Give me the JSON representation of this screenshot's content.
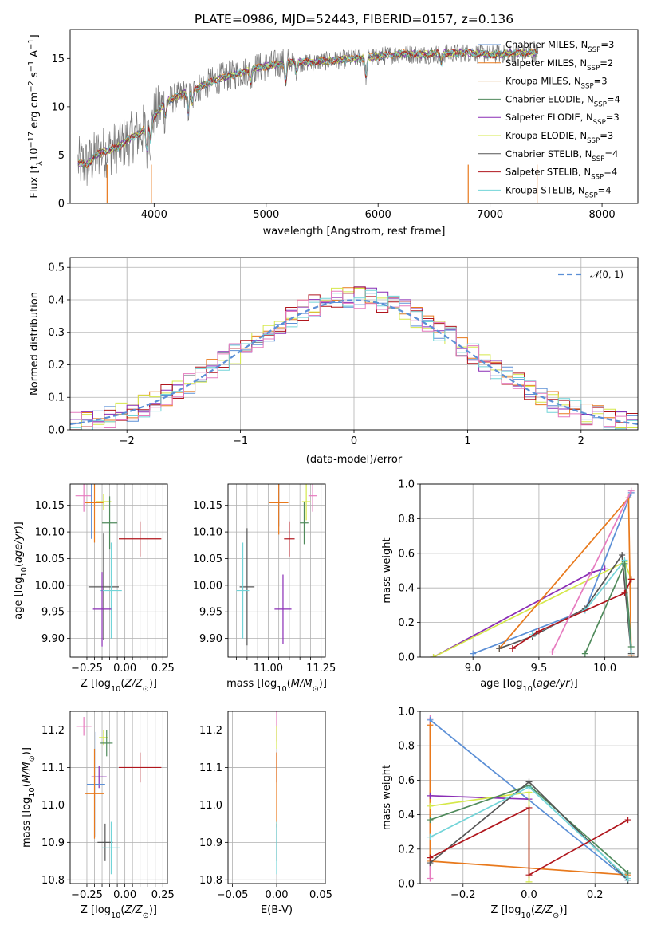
{
  "figure": {
    "title": "PLATE=0986, MJD=52443, FIBERID=0157, z=0.136"
  },
  "models": [
    {
      "name": "Chabrier MILES",
      "nssp": "3",
      "color": "#5b8fd6"
    },
    {
      "name": "Salpeter MILES",
      "nssp": "2",
      "color": "#e8791c"
    },
    {
      "name": "Kroupa MILES",
      "nssp": "3",
      "color": "#c8771a"
    },
    {
      "name": "Chabrier ELODIE",
      "nssp": "4",
      "color": "#4f8a5b"
    },
    {
      "name": "Salpeter ELODIE",
      "nssp": "3",
      "color": "#8a2db5"
    },
    {
      "name": "Kroupa ELODIE",
      "nssp": "3",
      "color": "#d5e84a"
    },
    {
      "name": "Chabrier STELIB",
      "nssp": "4",
      "color": "#555555"
    },
    {
      "name": "Salpeter STELIB",
      "nssp": "4",
      "color": "#b0161d"
    },
    {
      "name": "Kroupa STELIB",
      "nssp": "4",
      "color": "#72d4d8"
    }
  ],
  "chart_data": [
    {
      "id": "spectrum",
      "type": "line",
      "xlabel": "wavelength [Angstrom, rest frame]",
      "ylabel": "Flux [f_λ 10^-17 erg cm^-2 s^-1 A^-1]",
      "xlim": [
        3250,
        8320
      ],
      "ylim": [
        0,
        18
      ],
      "xticks": [
        4000,
        5000,
        6000,
        7000,
        8000
      ],
      "yticks": [
        0,
        5,
        10,
        15
      ],
      "continuum": {
        "x": [
          3320,
          3400,
          3500,
          3600,
          3700,
          3800,
          3900,
          4000,
          4100,
          4200,
          4300,
          4400,
          4500,
          4600,
          4700,
          4800,
          4900,
          5000,
          5200,
          5400,
          5600,
          5800,
          6000,
          6200,
          6400,
          6600,
          6800,
          7000,
          7200,
          7400
        ],
        "y": [
          4.2,
          4.0,
          5.2,
          5.5,
          6.0,
          6.8,
          7.5,
          9.0,
          10.5,
          11.0,
          11.5,
          12.0,
          12.5,
          13.0,
          13.3,
          13.6,
          14.0,
          14.2,
          14.6,
          14.6,
          14.8,
          15.0,
          15.2,
          15.5,
          15.4,
          15.5,
          15.6,
          15.4,
          15.5,
          15.6
        ]
      },
      "legend_position": "top-right",
      "grid": false
    },
    {
      "id": "residuals",
      "type": "step",
      "xlabel": "(data-model)/error",
      "ylabel": "Normed distribution",
      "xlim": [
        -2.5,
        2.5
      ],
      "ylim": [
        0,
        0.53
      ],
      "xticks": [
        -2,
        -1,
        0,
        1,
        2
      ],
      "yticks": [
        0.0,
        0.1,
        0.2,
        0.3,
        0.4,
        0.5
      ],
      "reference_label": "𝒩(0,1)",
      "reference_color": "#5b8fd6",
      "bin_width": 0.1,
      "series_colors": [
        "#5b8fd6",
        "#e8791c",
        "#d5e84a",
        "#8a2db5",
        "#b0161d",
        "#72d4d8",
        "#e67bbf"
      ],
      "grid": true
    },
    {
      "id": "age-vs-Z",
      "type": "errorbar",
      "xlabel": "Z [log10(Z/Z⊙)]",
      "ylabel": "age [log10(age/yr)]",
      "xlim": [
        -0.36,
        0.28
      ],
      "ylim": [
        9.865,
        10.19
      ],
      "xticks": [
        -0.25,
        -0.2,
        -0.15,
        -0.1,
        -0.05,
        0.0,
        0.05,
        0.1,
        0.15,
        0.2,
        0.25
      ],
      "xtick_labels": [
        "−0.25",
        "",
        "",
        "",
        "",
        "0.00",
        "",
        "",
        "",
        "",
        "0.25"
      ],
      "yticks": [
        9.9,
        9.95,
        10.0,
        10.05,
        10.1,
        10.15
      ],
      "points": [
        {
          "x": -0.27,
          "y": 10.168,
          "xerr": 0.055,
          "yerr": 0.03,
          "color": "#e67bbf"
        },
        {
          "x": -0.22,
          "y": 10.155,
          "xerr": 0.04,
          "yerr": 0.068,
          "color": "#5b8fd6"
        },
        {
          "x": -0.2,
          "y": 10.155,
          "xerr": 0.06,
          "yerr": 0.075,
          "color": "#e8791c"
        },
        {
          "x": -0.14,
          "y": 10.157,
          "xerr": 0.05,
          "yerr": 0.015,
          "color": "#d5e84a"
        },
        {
          "x": -0.1,
          "y": 10.117,
          "xerr": 0.05,
          "yerr": 0.05,
          "color": "#4f8a5b"
        },
        {
          "x": 0.1,
          "y": 10.087,
          "xerr": 0.14,
          "yerr": 0.033,
          "color": "#b0161d"
        },
        {
          "x": -0.14,
          "y": 9.997,
          "xerr": 0.1,
          "yerr": 0.1,
          "color": "#555555"
        },
        {
          "x": -0.09,
          "y": 9.99,
          "xerr": 0.07,
          "yerr": 0.09,
          "color": "#72d4d8"
        },
        {
          "x": -0.15,
          "y": 9.955,
          "xerr": 0.06,
          "yerr": 0.07,
          "color": "#8a2db5"
        }
      ],
      "grid": true
    },
    {
      "id": "age-vs-mass",
      "type": "errorbar",
      "xlabel": "mass [log10(M/M⊙)]",
      "ylabel": "",
      "xlim": [
        10.81,
        11.27
      ],
      "ylim": [
        9.865,
        10.19
      ],
      "xticks": [
        10.85,
        10.9,
        10.95,
        11.0,
        11.05,
        11.1,
        11.15,
        11.2,
        11.25
      ],
      "xtick_labels": [
        "",
        "",
        "",
        "11.00",
        "",
        "",
        "",
        "",
        "11.25"
      ],
      "yticks": [
        9.9,
        9.95,
        10.0,
        10.05,
        10.1,
        10.15
      ],
      "points": [
        {
          "x": 11.21,
          "y": 10.168,
          "xerr": 0.02,
          "yerr": 0.03,
          "color": "#e67bbf"
        },
        {
          "x": 11.05,
          "y": 10.155,
          "xerr": 0.04,
          "yerr": 0.045,
          "color": "#5b8fd6"
        },
        {
          "x": 11.05,
          "y": 10.155,
          "xerr": 0.045,
          "yerr": 0.06,
          "color": "#e8791c"
        },
        {
          "x": 11.18,
          "y": 10.157,
          "xerr": 0.02,
          "yerr": 0.035,
          "color": "#d5e84a"
        },
        {
          "x": 11.17,
          "y": 10.117,
          "xerr": 0.02,
          "yerr": 0.04,
          "color": "#4f8a5b"
        },
        {
          "x": 11.1,
          "y": 10.087,
          "xerr": 0.025,
          "yerr": 0.033,
          "color": "#b0161d"
        },
        {
          "x": 10.9,
          "y": 9.997,
          "xerr": 0.035,
          "yerr": 0.11,
          "color": "#555555"
        },
        {
          "x": 10.88,
          "y": 9.99,
          "xerr": 0.03,
          "yerr": 0.09,
          "color": "#72d4d8"
        },
        {
          "x": 11.07,
          "y": 9.955,
          "xerr": 0.04,
          "yerr": 0.065,
          "color": "#8a2db5"
        }
      ],
      "grid": true
    },
    {
      "id": "mass-weight-vs-age",
      "type": "line",
      "xlabel": "age [log10(age/yr)]",
      "ylabel": "mass weight",
      "xlim": [
        8.6,
        10.25
      ],
      "ylim": [
        0,
        1
      ],
      "xticks": [
        9.0,
        9.5,
        10.0
      ],
      "yticks": [
        0.0,
        0.2,
        0.4,
        0.6,
        0.8,
        1.0
      ],
      "series": [
        {
          "color": "#8a2db5",
          "x": [
            8.7,
            9.9,
            10.0
          ],
          "y": [
            0.0,
            0.49,
            0.51
          ]
        },
        {
          "color": "#d5e84a",
          "x": [
            8.7,
            10.15,
            10.2
          ],
          "y": [
            0.0,
            0.55,
            0.45
          ]
        },
        {
          "color": "#5b8fd6",
          "x": [
            9.0,
            9.85,
            10.2
          ],
          "y": [
            0.02,
            0.27,
            0.95
          ]
        },
        {
          "color": "#e8791c",
          "x": [
            9.2,
            10.18,
            10.2
          ],
          "y": [
            0.05,
            0.92,
            0.01
          ]
        },
        {
          "color": "#555555",
          "x": [
            9.2,
            9.45,
            9.85,
            10.13,
            10.2
          ],
          "y": [
            0.05,
            0.12,
            0.28,
            0.59,
            0.02
          ]
        },
        {
          "color": "#72d4d8",
          "x": [
            9.45,
            9.85,
            10.15,
            10.2
          ],
          "y": [
            0.13,
            0.27,
            0.56,
            0.03
          ]
        },
        {
          "color": "#b0161d",
          "x": [
            9.3,
            9.5,
            10.15,
            10.2
          ],
          "y": [
            0.05,
            0.15,
            0.37,
            0.45
          ]
        },
        {
          "color": "#4f8a5b",
          "x": [
            9.85,
            10.15,
            10.2
          ],
          "y": [
            0.02,
            0.54,
            0.06
          ]
        },
        {
          "color": "#e67bbf",
          "x": [
            9.6,
            10.2
          ],
          "y": [
            0.03,
            0.96
          ]
        }
      ],
      "grid": true
    },
    {
      "id": "mass-vs-Z",
      "type": "errorbar",
      "xlabel": "Z [log10(Z/Z⊙)]",
      "ylabel": "mass [log10(M/M⊙)]",
      "xlim": [
        -0.36,
        0.28
      ],
      "ylim": [
        10.79,
        11.25
      ],
      "xticks": [
        -0.25,
        -0.2,
        -0.15,
        -0.1,
        -0.05,
        0.0,
        0.05,
        0.1,
        0.15,
        0.2,
        0.25
      ],
      "xtick_labels": [
        "−0.25",
        "",
        "",
        "",
        "",
        "0.00",
        "",
        "",
        "",
        "",
        "0.25"
      ],
      "yticks": [
        10.8,
        10.9,
        11.0,
        11.1,
        11.2
      ],
      "points": [
        {
          "x": -0.27,
          "y": 11.21,
          "xerr": 0.05,
          "yerr": 0.025,
          "color": "#e67bbf"
        },
        {
          "x": -0.14,
          "y": 11.18,
          "xerr": 0.03,
          "yerr": 0.02,
          "color": "#d5e84a"
        },
        {
          "x": -0.12,
          "y": 11.165,
          "xerr": 0.04,
          "yerr": 0.035,
          "color": "#4f8a5b"
        },
        {
          "x": 0.1,
          "y": 11.1,
          "xerr": 0.14,
          "yerr": 0.04,
          "color": "#b0161d"
        },
        {
          "x": -0.17,
          "y": 11.075,
          "xerr": 0.05,
          "yerr": 0.03,
          "color": "#8a2db5"
        },
        {
          "x": -0.19,
          "y": 11.055,
          "xerr": 0.06,
          "yerr": 0.14,
          "color": "#5b8fd6"
        },
        {
          "x": -0.2,
          "y": 11.03,
          "xerr": 0.06,
          "yerr": 0.12,
          "color": "#e8791c"
        },
        {
          "x": -0.13,
          "y": 10.9,
          "xerr": 0.05,
          "yerr": 0.05,
          "color": "#555555"
        },
        {
          "x": -0.09,
          "y": 10.885,
          "xerr": 0.06,
          "yerr": 0.07,
          "color": "#72d4d8"
        }
      ],
      "grid": true
    },
    {
      "id": "mass-vs-EBV",
      "type": "errorbar",
      "xlabel": "E(B-V)",
      "ylabel": "",
      "xlim": [
        -0.055,
        0.055
      ],
      "ylim": [
        10.79,
        11.25
      ],
      "xticks": [
        -0.05,
        0.0,
        0.05
      ],
      "xtick_labels": [
        "−0.05",
        "0.00",
        "0.05"
      ],
      "yticks": [
        10.8,
        10.9,
        11.0,
        11.1,
        11.2
      ],
      "points": [
        {
          "x": 0.0,
          "y": 11.21,
          "xerr": 0.0,
          "yerr": 0.04,
          "color": "#e67bbf"
        },
        {
          "x": 0.0,
          "y": 11.18,
          "xerr": 0.0,
          "yerr": 0.03,
          "color": "#d5e84a"
        },
        {
          "x": 0.0,
          "y": 11.1,
          "xerr": 0.0,
          "yerr": 0.04,
          "color": "#b0161d"
        },
        {
          "x": 0.0,
          "y": 11.04,
          "xerr": 0.0,
          "yerr": 0.1,
          "color": "#e8791c"
        },
        {
          "x": 0.0,
          "y": 10.9,
          "xerr": 0.0,
          "yerr": 0.05,
          "color": "#555555"
        },
        {
          "x": 0.0,
          "y": 10.885,
          "xerr": 0.0,
          "yerr": 0.07,
          "color": "#72d4d8"
        }
      ],
      "grid": true
    },
    {
      "id": "mass-weight-vs-Z",
      "type": "line",
      "xlabel": "Z [log10(Z/Z⊙)]",
      "ylabel": "mass weight",
      "xlim": [
        -0.33,
        0.33
      ],
      "ylim": [
        0,
        1
      ],
      "xticks": [
        -0.2,
        0.0,
        0.2
      ],
      "xtick_labels": [
        "−0.2",
        "0.0",
        "0.2"
      ],
      "yticks": [
        0.0,
        0.2,
        0.4,
        0.6,
        0.8,
        1.0
      ],
      "series": [
        {
          "color": "#e67bbf",
          "x": [
            -0.3,
            -0.3
          ],
          "y": [
            0.96,
            0.03
          ]
        },
        {
          "color": "#5b8fd6",
          "x": [
            -0.3,
            0.3
          ],
          "y": [
            0.95,
            0.02
          ]
        },
        {
          "color": "#e8791c",
          "x": [
            -0.3,
            -0.3,
            0.3
          ],
          "y": [
            0.92,
            0.13,
            0.05
          ]
        },
        {
          "color": "#8a2db5",
          "x": [
            -0.3,
            0.0
          ],
          "y": [
            0.51,
            0.49
          ]
        },
        {
          "color": "#d5e84a",
          "x": [
            -0.3,
            0.0,
            0.0
          ],
          "y": [
            0.45,
            0.53,
            0.01
          ]
        },
        {
          "color": "#4f8a5b",
          "x": [
            -0.3,
            0.0,
            0.3
          ],
          "y": [
            0.37,
            0.57,
            0.06
          ]
        },
        {
          "color": "#555555",
          "x": [
            -0.3,
            0.0,
            0.3
          ],
          "y": [
            0.12,
            0.59,
            0.02
          ]
        },
        {
          "color": "#72d4d8",
          "x": [
            -0.3,
            0.0,
            0.3
          ],
          "y": [
            0.27,
            0.56,
            0.03
          ]
        },
        {
          "color": "#b0161d",
          "x": [
            -0.3,
            0.0,
            0.0,
            0.3
          ],
          "y": [
            0.15,
            0.44,
            0.05,
            0.37
          ]
        }
      ],
      "grid": true
    }
  ]
}
